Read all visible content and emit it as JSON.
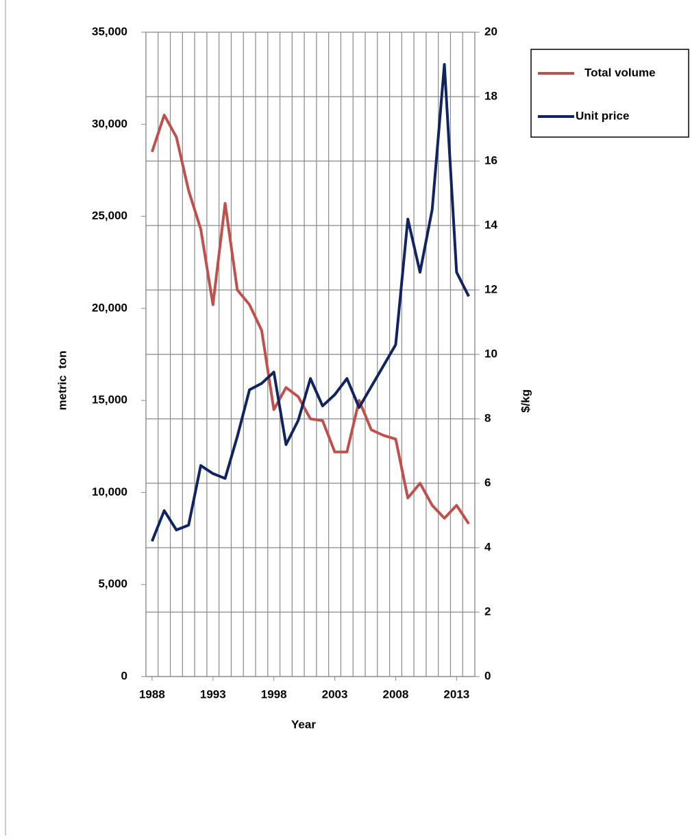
{
  "chart_data": {
    "type": "line",
    "x_label": "Year",
    "y_label": "metric  ton",
    "y2_label": "$/kg",
    "x": [
      1988,
      1989,
      1990,
      1991,
      1992,
      1993,
      1994,
      1995,
      1996,
      1997,
      1998,
      1999,
      2000,
      2001,
      2002,
      2003,
      2004,
      2005,
      2006,
      2007,
      2008,
      2009,
      2010,
      2011,
      2012,
      2013,
      2014
    ],
    "xlim": [
      1987.5,
      2014.5
    ],
    "xticks": [
      1988,
      1993,
      1998,
      2003,
      2008,
      2013
    ],
    "ylim": [
      0,
      35000
    ],
    "yticks": [
      0,
      {
        "value": 5000,
        "label": "5,000"
      },
      {
        "value": 10000,
        "label": "10,000"
      },
      {
        "value": 15000,
        "label": "15,000"
      },
      {
        "value": 20000,
        "label": "20,000"
      },
      {
        "value": 25000,
        "label": "25,000"
      },
      {
        "value": 30000,
        "label": "30,000"
      },
      {
        "value": 35000,
        "label": "35,000"
      }
    ],
    "y2lim": [
      0,
      20
    ],
    "y2ticks": [
      0,
      2,
      4,
      6,
      8,
      10,
      12,
      14,
      16,
      18,
      20
    ],
    "grid": true,
    "legend": "upper right",
    "series": [
      {
        "name": "Total volume",
        "color": "#c0504d",
        "values": [
          28500,
          30500,
          29300,
          26400,
          24300,
          20200,
          25700,
          21000,
          20200,
          18800,
          14500,
          15700,
          15200,
          14000,
          13900,
          12200,
          12200,
          15000,
          13400,
          13100,
          12900,
          9700,
          10500,
          9300,
          8600,
          9300,
          8300
        ]
      },
      {
        "name": "Unit price",
        "color": "#0f2460",
        "axis": "y2",
        "values": [
          4.2,
          5.15,
          4.55,
          4.7,
          6.55,
          6.3,
          6.15,
          7.45,
          8.9,
          9.1,
          9.45,
          7.2,
          7.95,
          9.25,
          8.4,
          8.75,
          9.25,
          8.35,
          9.0,
          9.65,
          10.3,
          14.2,
          12.55,
          14.5,
          19.0,
          12.55,
          11.8
        ]
      }
    ]
  }
}
